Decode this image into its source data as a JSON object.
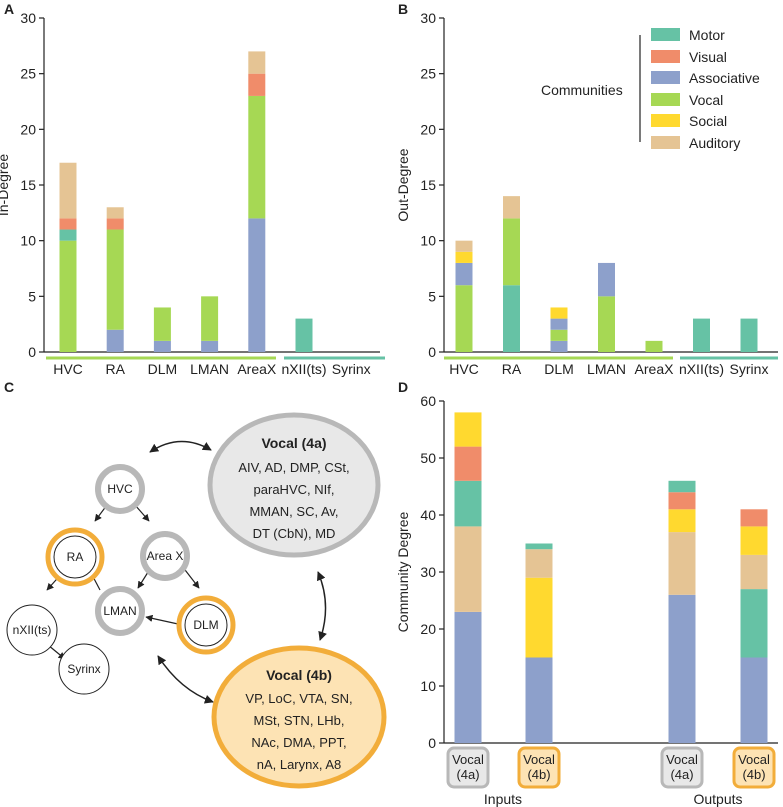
{
  "colors": {
    "Motor": "#66c2a5",
    "Visual": "#f08c6a",
    "Associative": "#8da0cb",
    "Vocal": "#a6d854",
    "Social": "#ffd92f",
    "Auditory": "#e5c494",
    "vocal_a_ring": "#b8b8b8",
    "vocal_b_ring": "#f2ad3a",
    "vocal_a_fill": "#e8e8e8",
    "vocal_b_fill": "#fde3b4"
  },
  "panel_labels": {
    "a": "A",
    "b": "B",
    "c": "C",
    "d": "D"
  },
  "legend": {
    "title": "Communities",
    "items": [
      "Motor",
      "Visual",
      "Associative",
      "Vocal",
      "Social",
      "Auditory"
    ]
  },
  "chart_data": [
    {
      "id": "A",
      "type": "bar",
      "stacked": true,
      "ylabel": "In-Degree",
      "ylim": [
        0,
        30
      ],
      "yticks": [
        0,
        5,
        10,
        15,
        20,
        25,
        30
      ],
      "categories": [
        "HVC",
        "RA",
        "DLM",
        "LMAN",
        "AreaX",
        "nXII(ts)",
        "Syrinx"
      ],
      "series": [
        {
          "name": "Associative",
          "values": [
            0,
            2,
            1,
            1,
            12,
            0,
            0
          ]
        },
        {
          "name": "Vocal",
          "values": [
            10,
            9,
            3,
            4,
            11,
            0,
            0
          ]
        },
        {
          "name": "Motor",
          "values": [
            1,
            0,
            0,
            0,
            0,
            3,
            0
          ]
        },
        {
          "name": "Social",
          "values": [
            0,
            0,
            0,
            0,
            0,
            0,
            0
          ]
        },
        {
          "name": "Visual",
          "values": [
            1,
            1,
            0,
            0,
            2,
            0,
            0
          ]
        },
        {
          "name": "Auditory",
          "values": [
            5,
            1,
            0,
            0,
            2,
            0,
            0
          ]
        }
      ]
    },
    {
      "id": "B",
      "type": "bar",
      "stacked": true,
      "ylabel": "Out-Degree",
      "ylim": [
        0,
        30
      ],
      "yticks": [
        0,
        5,
        10,
        15,
        20,
        25,
        30
      ],
      "categories": [
        "HVC",
        "RA",
        "DLM",
        "LMAN",
        "AreaX",
        "nXII(ts)",
        "Syrinx"
      ],
      "series": [
        {
          "name": "Motor",
          "values": [
            0,
            6,
            0,
            0,
            0,
            3,
            3
          ]
        },
        {
          "name": "Associative",
          "values": [
            0,
            0,
            1,
            0,
            0,
            0,
            0
          ]
        },
        {
          "name": "Vocal",
          "values": [
            6,
            6,
            1,
            5,
            1,
            0,
            0
          ]
        },
        {
          "name": "Associative",
          "values": [
            2,
            0,
            1,
            3,
            0,
            0,
            0
          ]
        },
        {
          "name": "Social",
          "values": [
            1,
            0,
            1,
            0,
            0,
            0,
            0
          ]
        },
        {
          "name": "Auditory",
          "values": [
            1,
            2,
            0,
            0,
            0,
            0,
            0
          ]
        }
      ]
    },
    {
      "id": "D",
      "type": "bar",
      "stacked": true,
      "ylabel": "Community Degree",
      "ylim": [
        0,
        60
      ],
      "yticks": [
        0,
        10,
        20,
        30,
        40,
        50,
        60
      ],
      "groups": [
        "Inputs",
        "Outputs"
      ],
      "bars": [
        {
          "label": "Vocal\n(4a)",
          "group": "Inputs",
          "stack": [
            [
              "Associative",
              23
            ],
            [
              "Auditory",
              15
            ],
            [
              "Motor",
              8
            ],
            [
              "Visual",
              6
            ],
            [
              "Social",
              6
            ]
          ]
        },
        {
          "label": "Vocal\n(4b)",
          "group": "Inputs",
          "stack": [
            [
              "Associative",
              15
            ],
            [
              "Social",
              14
            ],
            [
              "Auditory",
              5
            ],
            [
              "Motor",
              1
            ]
          ]
        },
        {
          "label": "Vocal\n(4a)",
          "group": "Outputs",
          "stack": [
            [
              "Associative",
              26
            ],
            [
              "Auditory",
              11
            ],
            [
              "Social",
              4
            ],
            [
              "Visual",
              3
            ],
            [
              "Motor",
              2
            ]
          ]
        },
        {
          "label": "Vocal\n(4b)",
          "group": "Outputs",
          "stack": [
            [
              "Associative",
              15
            ],
            [
              "Motor",
              12
            ],
            [
              "Auditory",
              6
            ],
            [
              "Social",
              5
            ],
            [
              "Visual",
              3
            ]
          ]
        }
      ]
    }
  ],
  "diagram": {
    "nodes": {
      "hvc": "HVC",
      "ra": "RA",
      "areax": "Area X",
      "lman": "LMAN",
      "dlm": "DLM",
      "nxii": "nXII(ts)",
      "syrinx": "Syrinx"
    },
    "vocal_a": {
      "title": "Vocal (4a)",
      "lines": [
        "AIV, AD, DMP, CSt,",
        "paraHVC, NIf,",
        "MMAN, SC, Av,",
        "DT (CbN), MD"
      ]
    },
    "vocal_b": {
      "title": "Vocal (4b)",
      "lines": [
        "VP, LoC, VTA, SN,",
        "MSt, STN, LHb,",
        "NAc, DMA, PPT,",
        "nA, Larynx, A8"
      ]
    }
  }
}
